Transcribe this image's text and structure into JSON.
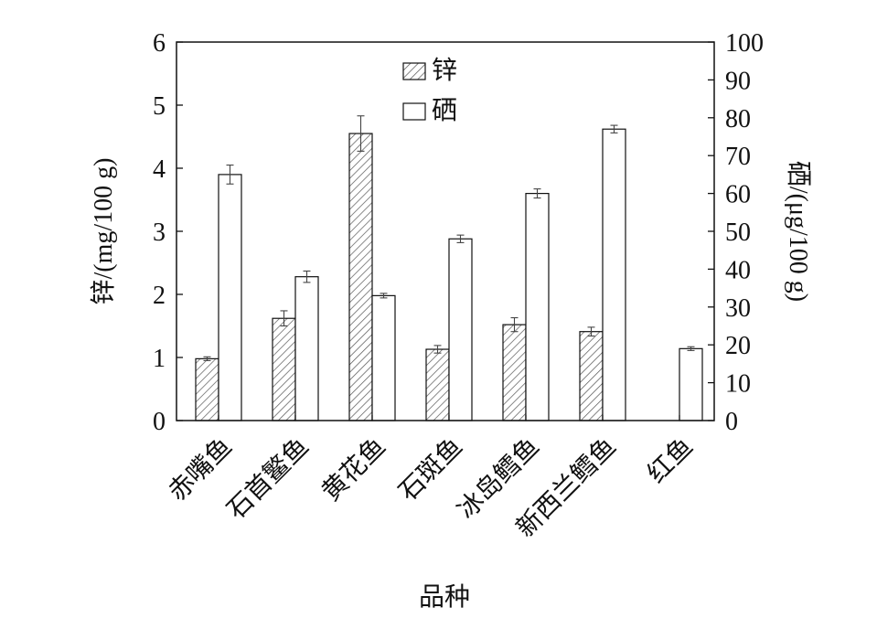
{
  "chart_data": {
    "type": "bar",
    "categories": [
      "赤嘴鱼",
      "石首鳘鱼",
      "黄花鱼",
      "石斑鱼",
      "冰岛鳕鱼",
      "新西兰鳕鱼",
      "红鱼"
    ],
    "series": [
      {
        "name": "锌",
        "axis": "left",
        "pattern": "hatched",
        "values": [
          0.98,
          1.62,
          4.55,
          1.13,
          1.52,
          1.41,
          null
        ],
        "errors": [
          0.03,
          0.12,
          0.28,
          0.06,
          0.11,
          0.07,
          null
        ]
      },
      {
        "name": "硒",
        "axis": "right",
        "pattern": "open",
        "values": [
          65.0,
          38.0,
          33.0,
          48.0,
          60.0,
          77.0,
          19.0
        ],
        "errors": [
          2.5,
          1.5,
          0.6,
          1.0,
          1.2,
          1.0,
          0.5
        ]
      }
    ],
    "xlabel": "品种",
    "ylabel": "锌/(mg/100 g)",
    "y2label": "硒/(μg/100 g)",
    "ylim": [
      0,
      6
    ],
    "y2lim": [
      0,
      100
    ],
    "yticks": [
      "0",
      "1",
      "2",
      "3",
      "4",
      "5",
      "6"
    ],
    "y2ticks": [
      "0",
      "10",
      "20",
      "30",
      "40",
      "50",
      "60",
      "70",
      "80",
      "90",
      "100"
    ],
    "legend_position": "top-center",
    "grid": false
  }
}
